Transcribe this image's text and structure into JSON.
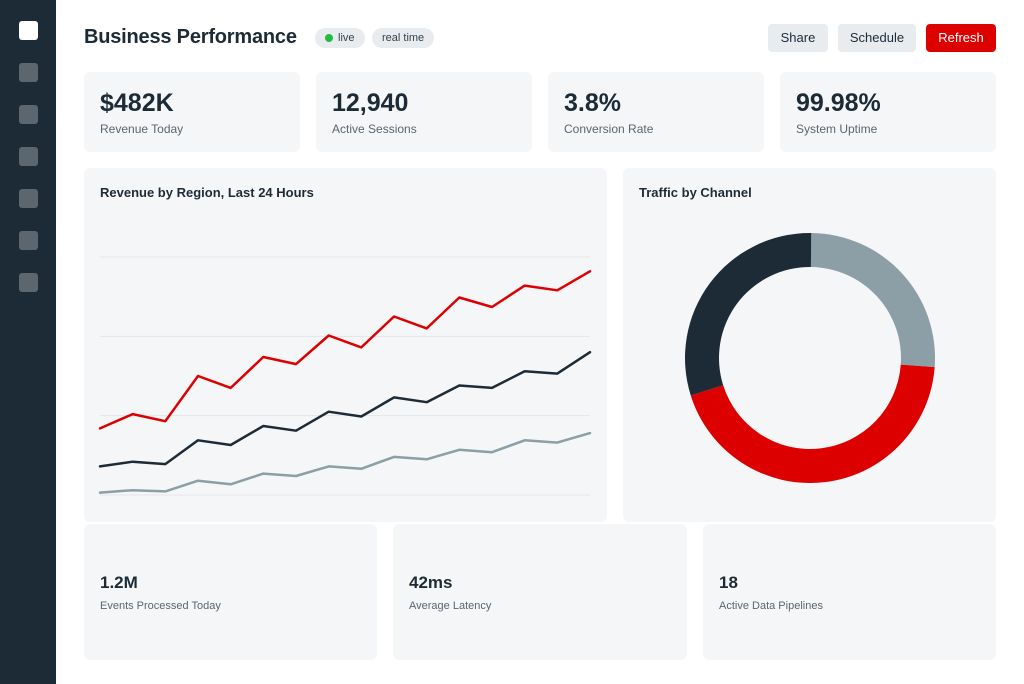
{
  "header": {
    "title": "Business Performance",
    "badges": {
      "live": "live",
      "realtime": "real time"
    },
    "actions": {
      "share": "Share",
      "schedule": "Schedule",
      "refresh": "Refresh"
    }
  },
  "sidebar": {
    "item_count": 7,
    "active_index": 0
  },
  "kpis": [
    {
      "value": "$482K",
      "label": "Revenue Today"
    },
    {
      "value": "12,940",
      "label": "Active Sessions"
    },
    {
      "value": "3.8%",
      "label": "Conversion Rate"
    },
    {
      "value": "99.98%",
      "label": "System Uptime"
    }
  ],
  "panels": {
    "revenue_title": "Revenue by Region, Last 24 Hours",
    "traffic_title": "Traffic by Channel"
  },
  "stats": [
    {
      "value": "1.2M",
      "label": "Events Processed Today"
    },
    {
      "value": "42ms",
      "label": "Average Latency"
    },
    {
      "value": "18",
      "label": "Active Data Pipelines"
    }
  ],
  "colors": {
    "accent": "#dd0000",
    "dark": "#1d2b36",
    "muted": "#8c9ea6",
    "live": "#22bb44"
  },
  "chart_data": [
    {
      "type": "line",
      "title": "Revenue by Region, Last 24 Hours",
      "grid": true,
      "ylim": [
        0,
        100
      ],
      "x": [
        1,
        2,
        3,
        4,
        5,
        6,
        7,
        8,
        9,
        10,
        11,
        12,
        13,
        14,
        15,
        16
      ],
      "series": [
        {
          "color": "#dd0000",
          "values": [
            28,
            34,
            31,
            50,
            45,
            58,
            55,
            67,
            62,
            75,
            70,
            83,
            79,
            88,
            86,
            94
          ]
        },
        {
          "color": "#1d2b36",
          "values": [
            12,
            14,
            13,
            23,
            21,
            29,
            27,
            35,
            33,
            41,
            39,
            46,
            45,
            52,
            51,
            60
          ]
        },
        {
          "color": "#8c9ea6",
          "values": [
            1,
            2,
            1.5,
            6,
            4.5,
            9,
            8,
            12,
            11,
            16,
            15,
            19,
            18,
            23,
            22,
            26
          ]
        }
      ]
    },
    {
      "type": "pie",
      "title": "Traffic by Channel",
      "donut": true,
      "slices": [
        {
          "color": "#8c9ea6",
          "value": 26
        },
        {
          "color": "#dd0000",
          "value": 44
        },
        {
          "color": "#1d2b36",
          "value": 30
        }
      ]
    }
  ]
}
